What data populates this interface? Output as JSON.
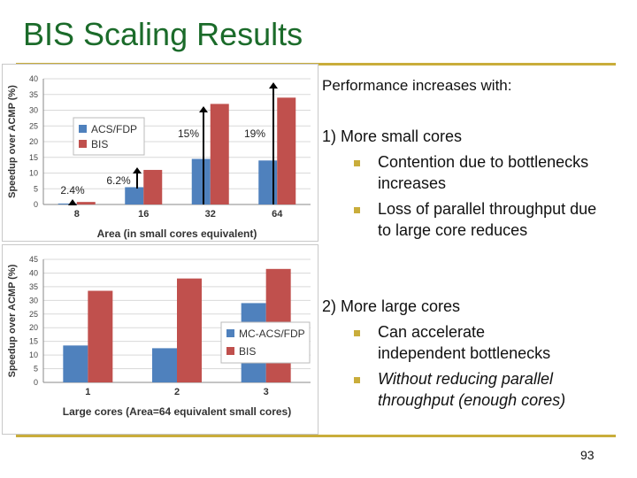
{
  "slide": {
    "title": "BIS Scaling Results",
    "intro": "Performance increases with:",
    "point1": "1) More small cores",
    "p1b1a": "Contention due to bottlenecks",
    "p1b1b": "increases",
    "p1b2a": "Loss of parallel throughput due",
    "p1b2b": "to large core reduces",
    "point2": "2) More large cores",
    "p2b1a": "Can accelerate",
    "p2b1b": "independent bottlenecks",
    "p2b2a": "Without reducing parallel",
    "p2b2b": "throughput (enough cores)",
    "page_number": "93"
  },
  "colors": {
    "title": "#1b6b2a",
    "rule": "#c9ad3b",
    "series1": "#4f81bd",
    "series2": "#c0504d"
  },
  "chart_data": [
    {
      "type": "bar",
      "categories": [
        "8",
        "16",
        "32",
        "64"
      ],
      "series": [
        {
          "name": "ACS/FDP",
          "values": [
            0.3,
            5.5,
            14.5,
            14
          ]
        },
        {
          "name": "BIS",
          "values": [
            0.8,
            11,
            32,
            34
          ]
        }
      ],
      "xlabel": "Area (in small cores equivalent)",
      "ylabel": "Speedup over ACMP (%)",
      "ylim": [
        0,
        40
      ],
      "yticks": [
        0,
        5,
        10,
        15,
        20,
        25,
        30,
        35,
        40
      ],
      "annotations": [
        "2.4%",
        "6.2%",
        "15%",
        "19%"
      ],
      "legend": "top-left",
      "grid": true
    },
    {
      "type": "bar",
      "categories": [
        "1",
        "2",
        "3"
      ],
      "series": [
        {
          "name": "MC-ACS/FDP",
          "values": [
            13.5,
            12.5,
            29
          ]
        },
        {
          "name": "BIS",
          "values": [
            33.5,
            38,
            41.5
          ]
        }
      ],
      "xlabel": "Large cores (Area=64 equivalent small cores)",
      "ylabel": "Speedup over ACMP (%)",
      "ylim": [
        0,
        45
      ],
      "yticks": [
        0,
        5,
        10,
        15,
        20,
        25,
        30,
        35,
        40,
        45
      ],
      "legend": "right",
      "grid": true
    }
  ]
}
